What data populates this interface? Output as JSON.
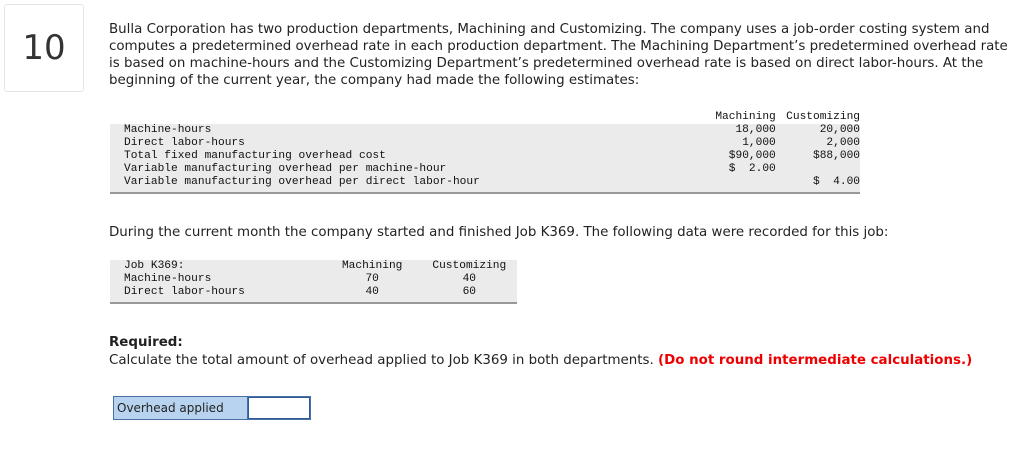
{
  "question_number": "10",
  "intro": "Bulla Corporation has two production departments, Machining and Customizing. The company uses a job-order costing system and computes a predetermined overhead rate in each production department. The Machining Department’s predetermined overhead rate is based on machine-hours and the Customizing Department’s predetermined overhead rate is based on direct labor-hours. At the beginning of the current year, the company had made the following estimates:",
  "estimates_table": {
    "columns": [
      "Machining",
      "Customizing"
    ],
    "rows": [
      [
        "Machine-hours",
        "18,000",
        "20,000"
      ],
      [
        "Direct labor-hours",
        "1,000",
        "2,000"
      ],
      [
        "Total fixed manufacturing overhead cost",
        "$90,000",
        "$88,000"
      ],
      [
        "Variable manufacturing overhead per machine-hour",
        "$  2.00",
        null
      ],
      [
        "Variable manufacturing overhead per direct labor-hour",
        null,
        "$  4.00"
      ]
    ]
  },
  "job_text": "During the current month the company started and finished Job K369. The following data were recorded for this job:",
  "job_table": {
    "title": "Job K369:",
    "columns": [
      "Machining",
      "Customizing"
    ],
    "rows": [
      [
        "Machine-hours",
        "70",
        "40"
      ],
      [
        "Direct labor-hours",
        "40",
        "60"
      ]
    ]
  },
  "required": {
    "heading": "Required:",
    "text": "Calculate the total amount of overhead applied to Job K369 in both departments.",
    "note": "(Do not round intermediate calculations.)"
  },
  "answer": {
    "label": "Overhead applied"
  }
}
